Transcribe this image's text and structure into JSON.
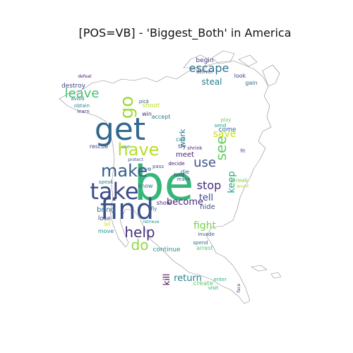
{
  "title": "[POS=VB] - 'Biggest_Both' in America",
  "words": [
    {
      "text": "be",
      "color": "#35b779"
    },
    {
      "text": "get",
      "color": "#31688e"
    },
    {
      "text": "find",
      "color": "#3b528b"
    },
    {
      "text": "take",
      "color": "#3e4a89"
    },
    {
      "text": "have",
      "color": "#b5de2b"
    },
    {
      "text": "make",
      "color": "#355f8d"
    },
    {
      "text": "go",
      "color": "#a0da39"
    },
    {
      "text": "help",
      "color": "#46327e"
    },
    {
      "text": "leave",
      "color": "#44bf70"
    },
    {
      "text": "do",
      "color": "#90d743"
    },
    {
      "text": "escape",
      "color": "#2c728e"
    },
    {
      "text": "use",
      "color": "#3b528b"
    },
    {
      "text": "see",
      "color": "#63cb5f"
    },
    {
      "text": "stop",
      "color": "#472d7b"
    },
    {
      "text": "save",
      "color": "#c8e020"
    },
    {
      "text": "keep",
      "color": "#20a386"
    },
    {
      "text": "fight",
      "color": "#7ad151"
    },
    {
      "text": "become",
      "color": "#482878"
    },
    {
      "text": "tell",
      "color": "#3e4989"
    },
    {
      "text": "work",
      "color": "#2a788e"
    },
    {
      "text": "return",
      "color": "#26828e"
    },
    {
      "text": "kill",
      "color": "#440154"
    },
    {
      "text": "steal",
      "color": "#287c8e"
    },
    {
      "text": "destroy",
      "color": "#3f4788"
    },
    {
      "text": "begin",
      "color": "#453781"
    },
    {
      "text": "bring",
      "color": "#2f6c8e"
    },
    {
      "text": "give",
      "color": "#34618d"
    },
    {
      "text": "know",
      "color": "#31688e"
    },
    {
      "text": "meet",
      "color": "#481f70"
    },
    {
      "text": "use",
      "color": "#1f9a8a"
    },
    {
      "text": "try",
      "color": "#3d4d8a"
    },
    {
      "text": "show",
      "color": "#482576"
    },
    {
      "text": "hide",
      "color": "#3b518b"
    },
    {
      "text": "come",
      "color": "#2e6d8e"
    },
    {
      "text": "move",
      "color": "#23898e"
    },
    {
      "text": "lose",
      "color": "#3f4889"
    },
    {
      "text": "create",
      "color": "#5ec962"
    },
    {
      "text": "continue",
      "color": "#21918c"
    },
    {
      "text": "deliver",
      "color": "#3e4c8a"
    },
    {
      "text": "shoot",
      "color": "#bddf26"
    },
    {
      "text": "win",
      "color": "#482979"
    },
    {
      "text": "die",
      "color": "#2d708e"
    },
    {
      "text": "decide",
      "color": "#440f76"
    },
    {
      "text": "fly",
      "color": "#31688e"
    },
    {
      "text": "rescue",
      "color": "#414487"
    },
    {
      "text": "call",
      "color": "#27808e"
    },
    {
      "text": "send",
      "color": "#1e9b8a"
    },
    {
      "text": "let",
      "color": "#dde318"
    },
    {
      "text": "play",
      "color": "#6ccd5a"
    },
    {
      "text": "visit",
      "color": "#28ae80"
    },
    {
      "text": "face",
      "color": "#472f7d"
    },
    {
      "text": "reach",
      "color": "#365c8d"
    },
    {
      "text": "break",
      "color": "#7fd34e"
    },
    {
      "text": "learn",
      "color": "#433e85"
    },
    {
      "text": "pick",
      "color": "#3a548c"
    },
    {
      "text": "avoid",
      "color": "#2c738e"
    },
    {
      "text": "obtain",
      "color": "#25858e"
    },
    {
      "text": "look",
      "color": "#404588"
    },
    {
      "text": "gain",
      "color": "#306a8e"
    },
    {
      "text": "accept",
      "color": "#2b758e"
    },
    {
      "text": "defeat",
      "color": "#481a6c"
    },
    {
      "text": "invade",
      "color": "#3c4f8a"
    },
    {
      "text": "spend",
      "color": "#2f6b8e"
    },
    {
      "text": "retrieve",
      "color": "#228c8d"
    },
    {
      "text": "arrest",
      "color": "#56c667"
    },
    {
      "text": "enter",
      "color": "#2ab07f"
    },
    {
      "text": "speak",
      "color": "#24878e"
    },
    {
      "text": "protect",
      "color": "#3b528b"
    },
    {
      "text": "shrink",
      "color": "#46307e"
    },
    {
      "text": "hold",
      "color": "#433d84"
    },
    {
      "text": "pass",
      "color": "#39568c"
    },
    {
      "text": "want",
      "color": "#c2df23"
    },
    {
      "text": "fit",
      "color": "#3f4788"
    }
  ]
}
